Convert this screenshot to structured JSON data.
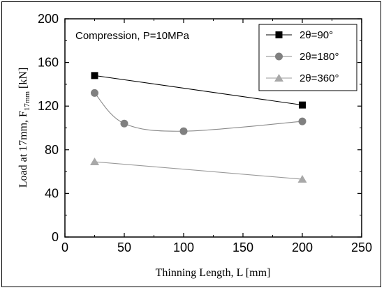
{
  "chart_data": {
    "type": "line",
    "title": "",
    "annotation": "Compression, P=10MPa",
    "xlabel": "Thinning Length, L [mm]",
    "ylabel_main": "Load at 17mm, F",
    "ylabel_sub": "17mm",
    "ylabel_end": " [kN]",
    "xlim": [
      0,
      250
    ],
    "ylim": [
      0,
      200
    ],
    "xticks": [
      0,
      50,
      100,
      150,
      200,
      250
    ],
    "yticks": [
      0,
      40,
      80,
      120,
      160,
      200
    ],
    "grid": false,
    "legend_position": "top-right",
    "series": [
      {
        "name": "2θ=90°",
        "marker": "square",
        "color": "#000000",
        "line_color": "#000000",
        "curve": "linear",
        "x": [
          25,
          200
        ],
        "y": [
          148,
          121
        ]
      },
      {
        "name": "2θ=180°",
        "marker": "circle",
        "color": "#808080",
        "line_color": "#8a8a8a",
        "curve": "smooth",
        "x": [
          25,
          50,
          100,
          200
        ],
        "y": [
          132,
          104,
          97,
          106
        ]
      },
      {
        "name": "2θ=360°",
        "marker": "triangle",
        "color": "#a8a8a8",
        "line_color": "#9a9a9a",
        "curve": "linear",
        "x": [
          25,
          200
        ],
        "y": [
          69,
          53
        ]
      }
    ]
  }
}
